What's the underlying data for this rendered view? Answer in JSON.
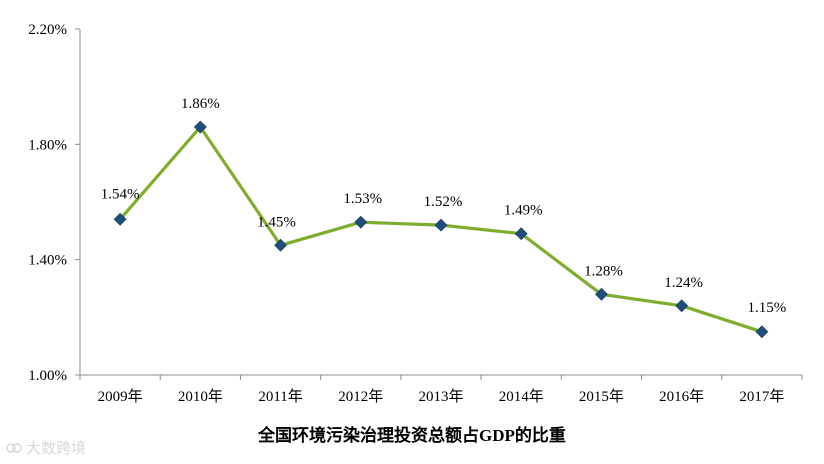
{
  "chart_data": {
    "type": "line",
    "title": "全国环境污染治理投资总额占GDP的比重",
    "categories": [
      "2009年",
      "2010年",
      "2011年",
      "2012年",
      "2013年",
      "2014年",
      "2015年",
      "2016年",
      "2017年"
    ],
    "series": [
      {
        "values": [
          1.54,
          1.86,
          1.45,
          1.53,
          1.52,
          1.49,
          1.28,
          1.24,
          1.15
        ],
        "data_labels": [
          "1.54%",
          "1.86%",
          "1.45%",
          "1.53%",
          "1.52%",
          "1.49%",
          "1.28%",
          "1.24%",
          "1.15%"
        ],
        "line_color": "#7fad2e",
        "marker_color": "#1f4e79",
        "marker": "diamond"
      }
    ],
    "ylim": [
      1.0,
      2.2
    ],
    "yticks": [
      1.0,
      1.4,
      1.8,
      2.2
    ],
    "ytick_labels": [
      "1.00%",
      "1.40%",
      "1.80%",
      "2.20%"
    ],
    "grid": false,
    "legend": "none"
  },
  "watermark": "大数跨境"
}
